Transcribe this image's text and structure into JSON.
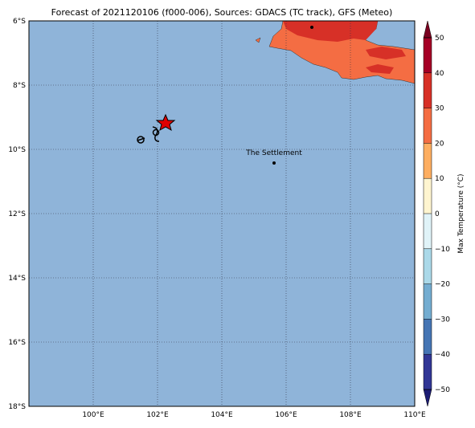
{
  "title": "Forecast of 2021120106 (f000-006), Sources: GDACS (TC track), GFS (Meteo)",
  "map": {
    "lat_labels": [
      "6°S",
      "8°S",
      "10°S",
      "12°S",
      "14°S",
      "16°S",
      "18°S"
    ],
    "lon_labels": [
      "100°E",
      "102°E",
      "104°E",
      "106°E",
      "108°E",
      "110°E"
    ],
    "place_label": "The Settlement",
    "ocean_color": "#8fb4d9"
  },
  "colorbar": {
    "label": "Max Temperature (°C)",
    "ticks": [
      {
        "value": -50,
        "label": "−50"
      },
      {
        "value": -40,
        "label": "−40"
      },
      {
        "value": -30,
        "label": "−30"
      },
      {
        "value": -20,
        "label": "−20"
      },
      {
        "value": -10,
        "label": "−10"
      },
      0,
      10,
      20,
      30,
      40,
      50
    ],
    "colors": [
      "#1c1c73",
      "#313695",
      "#4575b4",
      "#74add1",
      "#abd9e9",
      "#e0f3f8",
      "#fff5d0",
      "#fdae61",
      "#f46d43",
      "#d73027",
      "#a50026",
      "#7a0020"
    ]
  }
}
